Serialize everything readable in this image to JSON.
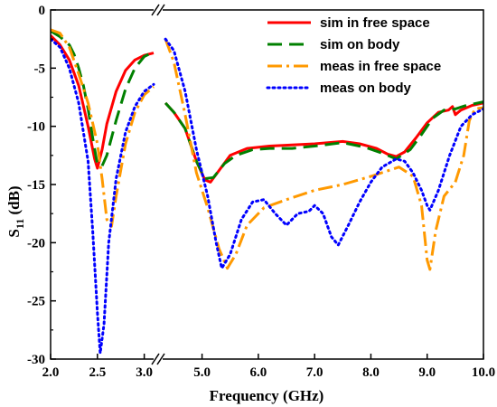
{
  "chart_data": {
    "type": "line",
    "title": "",
    "xlabel": "Frequency (GHz)",
    "ylabel": {
      "main": "S",
      "sub": "11",
      "unit": " (dB)"
    },
    "ylim": [
      -30,
      0
    ],
    "yticks": [
      "0",
      "-5",
      "-10",
      "-15",
      "-20",
      "-25",
      "-30"
    ],
    "x_axis_break": true,
    "x_segments": [
      {
        "range": [
          2.0,
          3.1
        ],
        "ticks": [
          "2.0",
          "2.5",
          "3.0"
        ]
      },
      {
        "range": [
          4.3,
          10.0
        ],
        "ticks": [
          "5.0",
          "6.0",
          "7.0",
          "8.0",
          "9.0",
          "10.0"
        ]
      }
    ],
    "legend_placement": "top-right",
    "series": [
      {
        "name": "sim in free space",
        "color": "#ff0000",
        "dash": "solid",
        "segments": [
          [
            [
              2.0,
              -2.2
            ],
            [
              2.1,
              -3.0
            ],
            [
              2.2,
              -4.3
            ],
            [
              2.3,
              -6.5
            ],
            [
              2.4,
              -10.0
            ],
            [
              2.47,
              -12.8
            ],
            [
              2.5,
              -13.6
            ],
            [
              2.55,
              -12.0
            ],
            [
              2.6,
              -9.8
            ],
            [
              2.7,
              -7.0
            ],
            [
              2.8,
              -5.2
            ],
            [
              2.9,
              -4.3
            ],
            [
              3.0,
              -3.9
            ],
            [
              3.1,
              -3.7
            ]
          ],
          [
            [
              4.35,
              -8.0
            ],
            [
              4.5,
              -8.8
            ],
            [
              4.7,
              -10.2
            ],
            [
              4.9,
              -13.0
            ],
            [
              5.05,
              -14.6
            ],
            [
              5.15,
              -14.8
            ],
            [
              5.3,
              -13.8
            ],
            [
              5.5,
              -12.5
            ],
            [
              5.8,
              -11.9
            ],
            [
              6.2,
              -11.7
            ],
            [
              6.6,
              -11.6
            ],
            [
              7.0,
              -11.5
            ],
            [
              7.5,
              -11.3
            ],
            [
              7.8,
              -11.5
            ],
            [
              8.1,
              -11.9
            ],
            [
              8.3,
              -12.4
            ],
            [
              8.45,
              -12.6
            ],
            [
              8.6,
              -12.2
            ],
            [
              8.8,
              -11.0
            ],
            [
              9.0,
              -9.7
            ],
            [
              9.2,
              -8.8
            ],
            [
              9.38,
              -8.6
            ],
            [
              9.45,
              -8.3
            ],
            [
              9.5,
              -9.0
            ],
            [
              9.6,
              -8.6
            ],
            [
              9.8,
              -8.2
            ],
            [
              10.0,
              -8.0
            ]
          ]
        ]
      },
      {
        "name": "sim on body",
        "color": "#008000",
        "dash": "16,8",
        "segments": [
          [
            [
              2.0,
              -1.8
            ],
            [
              2.1,
              -2.3
            ],
            [
              2.2,
              -3.0
            ],
            [
              2.25,
              -3.8
            ],
            [
              2.3,
              -5.0
            ],
            [
              2.35,
              -6.5
            ],
            [
              2.4,
              -8.5
            ],
            [
              2.45,
              -11.0
            ],
            [
              2.5,
              -13.3
            ],
            [
              2.55,
              -13.4
            ],
            [
              2.6,
              -12.5
            ],
            [
              2.7,
              -9.5
            ],
            [
              2.8,
              -6.8
            ],
            [
              2.9,
              -5.0
            ],
            [
              3.0,
              -4.0
            ],
            [
              3.1,
              -3.6
            ]
          ],
          [
            [
              4.35,
              -8.0
            ],
            [
              4.5,
              -8.8
            ],
            [
              4.7,
              -10.2
            ],
            [
              4.9,
              -13.0
            ],
            [
              5.05,
              -14.5
            ],
            [
              5.2,
              -14.4
            ],
            [
              5.4,
              -13.2
            ],
            [
              5.6,
              -12.5
            ],
            [
              5.9,
              -12.0
            ],
            [
              6.2,
              -11.9
            ],
            [
              6.6,
              -11.9
            ],
            [
              7.0,
              -11.7
            ],
            [
              7.5,
              -11.4
            ],
            [
              7.9,
              -11.8
            ],
            [
              8.2,
              -12.3
            ],
            [
              8.45,
              -12.8
            ],
            [
              8.7,
              -12.0
            ],
            [
              8.9,
              -10.7
            ],
            [
              9.1,
              -9.3
            ],
            [
              9.3,
              -8.6
            ],
            [
              9.5,
              -8.5
            ],
            [
              9.7,
              -8.2
            ],
            [
              10.0,
              -7.9
            ]
          ]
        ]
      },
      {
        "name": "meas in free space",
        "color": "#ff9900",
        "dash": "16,5,3,5",
        "segments": [
          [
            [
              2.0,
              -1.7
            ],
            [
              2.1,
              -2.0
            ],
            [
              2.2,
              -3.2
            ],
            [
              2.3,
              -5.5
            ],
            [
              2.4,
              -8.0
            ],
            [
              2.5,
              -11.5
            ],
            [
              2.55,
              -14.5
            ],
            [
              2.6,
              -18.0
            ],
            [
              2.65,
              -18.6
            ],
            [
              2.7,
              -16.0
            ],
            [
              2.8,
              -11.5
            ],
            [
              2.9,
              -8.8
            ],
            [
              3.0,
              -7.3
            ],
            [
              3.1,
              -6.6
            ]
          ],
          [
            [
              4.35,
              -2.5
            ],
            [
              4.5,
              -4.5
            ],
            [
              4.7,
              -9.0
            ],
            [
              4.9,
              -14.0
            ],
            [
              5.1,
              -17.0
            ],
            [
              5.3,
              -20.5
            ],
            [
              5.45,
              -22.2
            ],
            [
              5.6,
              -21.0
            ],
            [
              5.8,
              -18.5
            ],
            [
              6.1,
              -17.0
            ],
            [
              6.5,
              -16.3
            ],
            [
              7.0,
              -15.5
            ],
            [
              7.5,
              -15.0
            ],
            [
              8.0,
              -14.3
            ],
            [
              8.5,
              -13.5
            ],
            [
              8.75,
              -14.3
            ],
            [
              8.9,
              -16.8
            ],
            [
              9.0,
              -21.5
            ],
            [
              9.05,
              -22.3
            ],
            [
              9.15,
              -19.0
            ],
            [
              9.3,
              -16.0
            ],
            [
              9.5,
              -14.8
            ],
            [
              9.65,
              -12.5
            ],
            [
              9.75,
              -9.5
            ],
            [
              9.85,
              -8.5
            ],
            [
              10.0,
              -8.4
            ]
          ]
        ]
      },
      {
        "name": "meas on body",
        "color": "#0000ff",
        "dash": "2,4",
        "segments": [
          [
            [
              2.0,
              -2.5
            ],
            [
              2.1,
              -3.2
            ],
            [
              2.2,
              -5.0
            ],
            [
              2.3,
              -8.0
            ],
            [
              2.4,
              -13.0
            ],
            [
              2.45,
              -19.0
            ],
            [
              2.5,
              -26.0
            ],
            [
              2.53,
              -29.5
            ],
            [
              2.57,
              -27.0
            ],
            [
              2.62,
              -20.0
            ],
            [
              2.7,
              -14.5
            ],
            [
              2.8,
              -10.5
            ],
            [
              2.9,
              -8.3
            ],
            [
              3.0,
              -7.0
            ],
            [
              3.1,
              -6.4
            ]
          ],
          [
            [
              4.35,
              -2.5
            ],
            [
              4.5,
              -3.5
            ],
            [
              4.7,
              -7.0
            ],
            [
              4.9,
              -12.0
            ],
            [
              5.1,
              -16.0
            ],
            [
              5.25,
              -20.0
            ],
            [
              5.35,
              -22.2
            ],
            [
              5.5,
              -21.0
            ],
            [
              5.7,
              -18.0
            ],
            [
              5.9,
              -16.5
            ],
            [
              6.1,
              -16.3
            ],
            [
              6.3,
              -17.5
            ],
            [
              6.5,
              -18.5
            ],
            [
              6.7,
              -17.5
            ],
            [
              6.9,
              -17.3
            ],
            [
              7.0,
              -16.8
            ],
            [
              7.15,
              -17.5
            ],
            [
              7.3,
              -19.5
            ],
            [
              7.42,
              -20.2
            ],
            [
              7.6,
              -18.5
            ],
            [
              7.8,
              -16.5
            ],
            [
              8.0,
              -14.8
            ],
            [
              8.2,
              -13.5
            ],
            [
              8.45,
              -12.8
            ],
            [
              8.6,
              -13.0
            ],
            [
              8.75,
              -14.0
            ],
            [
              8.9,
              -15.5
            ],
            [
              9.0,
              -16.8
            ],
            [
              9.05,
              -17.2
            ],
            [
              9.2,
              -15.5
            ],
            [
              9.4,
              -12.5
            ],
            [
              9.6,
              -10.0
            ],
            [
              9.8,
              -9.0
            ],
            [
              10.0,
              -8.5
            ]
          ]
        ]
      }
    ]
  }
}
